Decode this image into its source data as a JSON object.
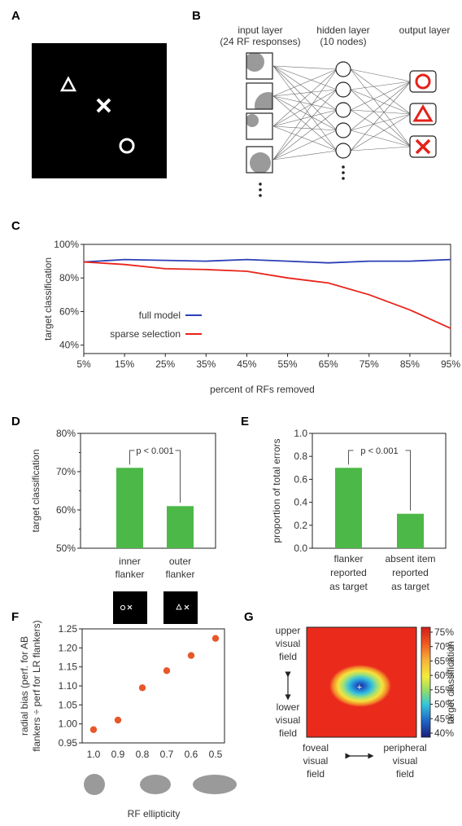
{
  "panels": {
    "a": "A",
    "b": "B",
    "c": "C",
    "d": "D",
    "e": "E",
    "f": "F",
    "g": "G"
  },
  "network": {
    "input_title_1": "input layer",
    "input_title_2": "(24 RF responses)",
    "hidden_title_1": "hidden layer",
    "hidden_title_2": "(10 nodes)",
    "output_title": "output layer",
    "output_color": "#e2231a"
  },
  "colors": {
    "blue": "#2b3fb6",
    "red": "#e8241a",
    "green": "#4cb847",
    "orange": "#e8572a",
    "grey": "#9a9a9a"
  },
  "chart_data": [
    {
      "id": "C",
      "type": "line",
      "ylabel": "target classification",
      "xlabel": "percent of RFs removed",
      "x": [
        "5%",
        "15%",
        "25%",
        "35%",
        "45%",
        "55%",
        "65%",
        "75%",
        "85%",
        "95%"
      ],
      "yticks": [
        "40%",
        "60%",
        "80%",
        "100%"
      ],
      "ylim": [
        0.35,
        1.0
      ],
      "series": [
        {
          "name": "full model",
          "color": "#2b3fb6",
          "values": [
            0.895,
            0.91,
            0.905,
            0.9,
            0.91,
            0.9,
            0.89,
            0.9,
            0.9,
            0.91
          ]
        },
        {
          "name": "sparse selection",
          "color": "#e8241a",
          "values": [
            0.895,
            0.88,
            0.855,
            0.85,
            0.84,
            0.8,
            0.77,
            0.7,
            0.61,
            0.5
          ]
        }
      ]
    },
    {
      "id": "D",
      "type": "bar",
      "ylabel": "target classification",
      "yticks": [
        "50%",
        "60%",
        "70%",
        "80%"
      ],
      "ylim": [
        0.5,
        0.8
      ],
      "categories": [
        [
          "inner",
          "flanker"
        ],
        [
          "outer",
          "flanker"
        ]
      ],
      "values": [
        0.71,
        0.61
      ],
      "annotation": "p < 0.001"
    },
    {
      "id": "E",
      "type": "bar",
      "ylabel": "proportion of total errors",
      "yticks": [
        "0.0",
        "0.2",
        "0.4",
        "0.6",
        "0.8",
        "1.0"
      ],
      "ylim": [
        0,
        1
      ],
      "categories": [
        [
          "flanker",
          "reported",
          "as target"
        ],
        [
          "absent item",
          "reported",
          "as target"
        ]
      ],
      "values": [
        0.7,
        0.3
      ],
      "annotation": "p < 0.001"
    },
    {
      "id": "F",
      "type": "scatter",
      "ylabel_1": "radial bias (perf. for AB",
      "ylabel_2": "flankers ÷ perf for LR flankers)",
      "xlabel": "RF ellipticity",
      "x": [
        "1.0",
        "0.9",
        "0.8",
        "0.7",
        "0.6",
        "0.5"
      ],
      "values": [
        0.985,
        1.01,
        1.095,
        1.14,
        1.18,
        1.225
      ],
      "yticks": [
        "0.95",
        "1.00",
        "1.05",
        "1.10",
        "1.15",
        "1.20",
        "1.25"
      ],
      "ylim": [
        0.95,
        1.25
      ]
    },
    {
      "id": "G",
      "type": "heatmap",
      "colorbar_label": "target classification",
      "colorbar_ticks": [
        "75%",
        "70%",
        "65%",
        "60%",
        "55%",
        "50%",
        "45%",
        "40%"
      ],
      "left_labels": {
        "upper_1": "upper",
        "upper_2": "visual",
        "upper_3": "field",
        "lower_1": "lower",
        "lower_2": "visual",
        "lower_3": "field"
      },
      "bottom_labels": {
        "foveal_1": "foveal",
        "foveal_2": "visual",
        "foveal_3": "field",
        "peri_1": "peripheral",
        "peri_2": "visual",
        "peri_3": "field"
      }
    }
  ]
}
